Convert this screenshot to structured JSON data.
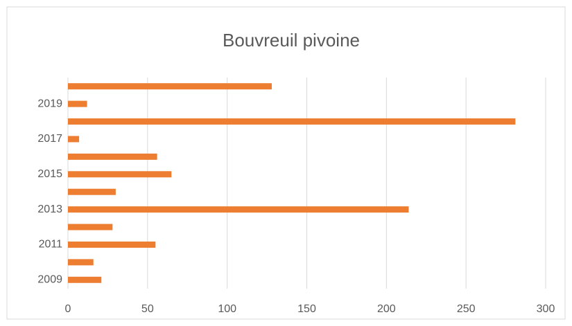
{
  "chart_data": {
    "type": "barh",
    "title": "Bouvreuil pivoine",
    "categories": [
      "2009",
      null,
      "2011",
      null,
      "2013",
      null,
      "2015",
      null,
      "2017",
      null,
      "2019",
      null
    ],
    "values": [
      21,
      16,
      55,
      28,
      214,
      30,
      65,
      56,
      7,
      281,
      12,
      128
    ],
    "color": "#ed7d31",
    "xlim": [
      0,
      300
    ],
    "xticks": [
      0,
      50,
      100,
      150,
      200,
      250,
      300
    ],
    "grid": true
  }
}
